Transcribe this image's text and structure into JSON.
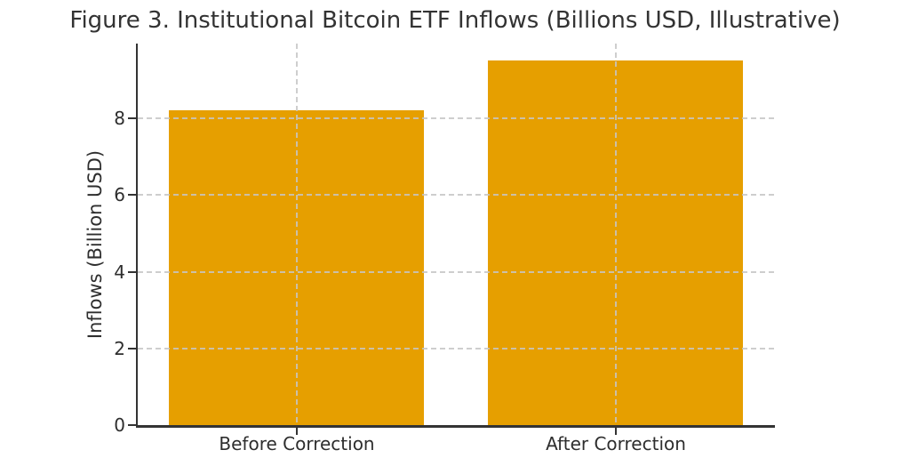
{
  "figure": {
    "title": "Figure 3. Institutional Bitcoin ETF Inflows (Billions USD, Illustrative)"
  },
  "chart_data": {
    "type": "bar",
    "title": "Figure 3. Institutional Bitcoin ETF Inflows (Billions USD, Illustrative)",
    "categories": [
      "Before Correction",
      "After Correction"
    ],
    "values": [
      8.2,
      9.5
    ],
    "xlabel": "",
    "ylabel": "Inflows (Billion USD)",
    "ylim": [
      0,
      9.95
    ],
    "yticks": [
      0,
      2,
      4,
      6,
      8
    ],
    "grid": true,
    "grid_style": "dashed",
    "legend_position": "none",
    "bar_color": "#E69F00",
    "grid_color": "#c6c6c6",
    "axis_color": "#333333",
    "text_color": "#2e2e2e",
    "background_color": "#ffffff"
  }
}
